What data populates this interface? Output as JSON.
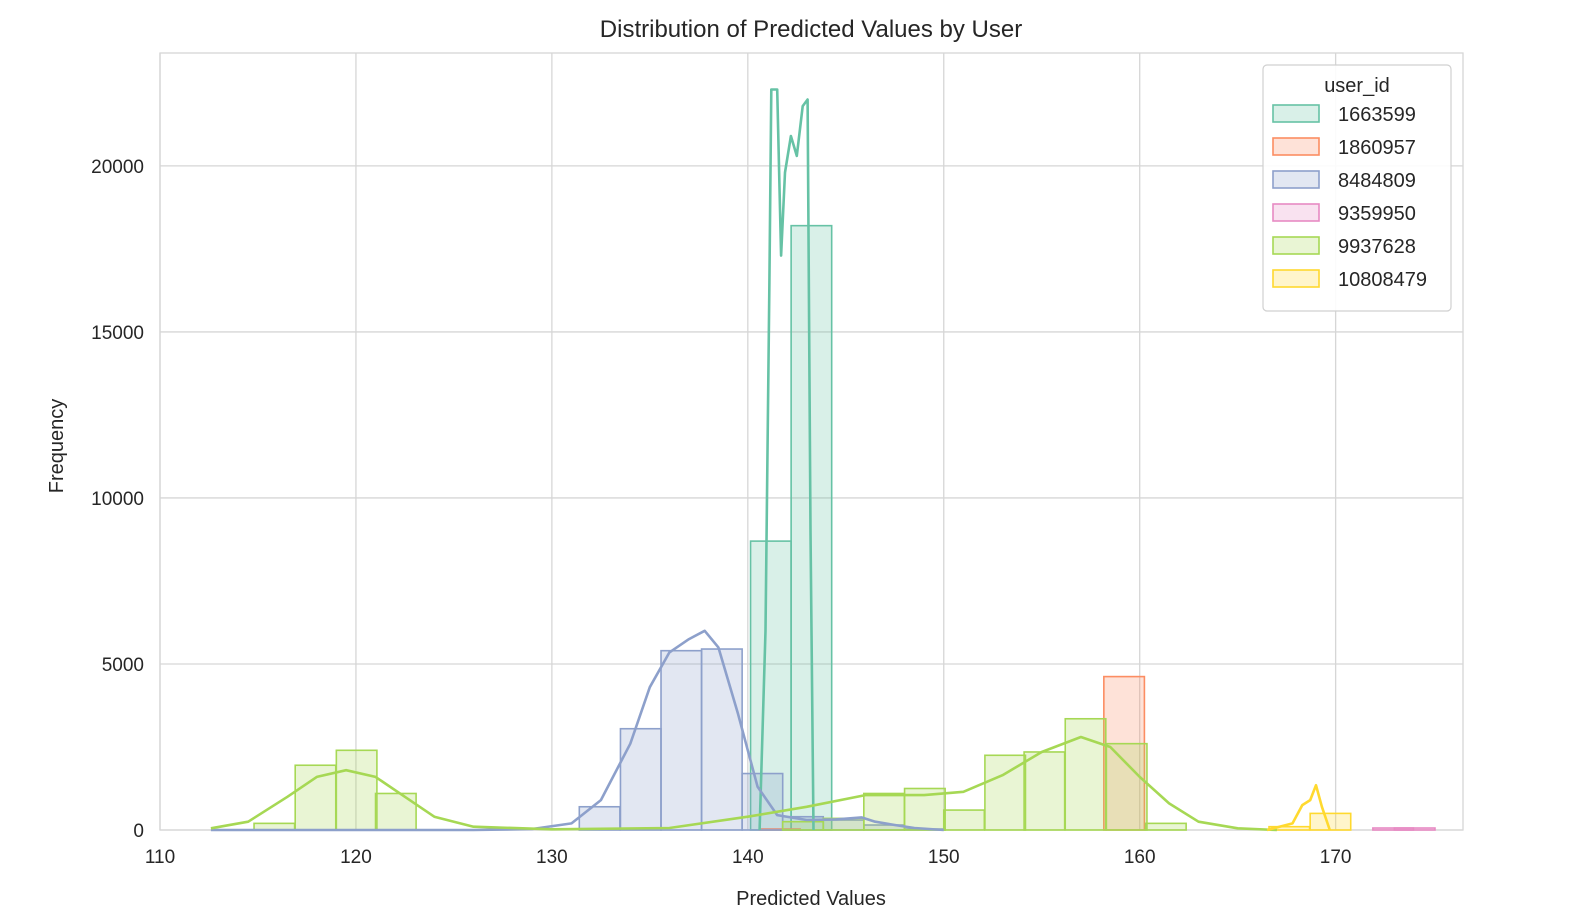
{
  "chart_data": {
    "type": "histogram",
    "title": "Distribution of Predicted Values by User",
    "xlabel": "Predicted Values",
    "ylabel": "Frequency",
    "xlim": [
      110,
      176.5
    ],
    "ylim": [
      0,
      23400
    ],
    "xticks": [
      110,
      120,
      130,
      140,
      150,
      160,
      170
    ],
    "yticks": [
      0,
      5000,
      10000,
      15000,
      20000
    ],
    "grid": true,
    "legend": {
      "title": "user_id",
      "position": "top-right"
    },
    "bin_width": 2.07,
    "series": [
      {
        "name": "1663599",
        "color": "#66c2a5",
        "bins": [
          [
            140.14,
            8700
          ],
          [
            142.21,
            18200
          ]
        ],
        "kde": [
          [
            140.6,
            0
          ],
          [
            140.9,
            6000
          ],
          [
            141.1,
            16500
          ],
          [
            141.2,
            22300
          ],
          [
            141.5,
            22300
          ],
          [
            141.7,
            17300
          ],
          [
            141.9,
            19800
          ],
          [
            142.2,
            20900
          ],
          [
            142.5,
            20300
          ],
          [
            142.8,
            21800
          ],
          [
            143.05,
            22000
          ],
          [
            143.2,
            9000
          ],
          [
            143.35,
            0
          ]
        ]
      },
      {
        "name": "1860957",
        "color": "#fc8d62",
        "bins": [
          [
            140.6,
            30
          ],
          [
            158.17,
            4620
          ]
        ],
        "kde": []
      },
      {
        "name": "8484809",
        "color": "#8da0cb",
        "bins": [
          [
            131.4,
            700
          ],
          [
            133.5,
            3050
          ],
          [
            135.57,
            5400
          ],
          [
            137.64,
            5450
          ],
          [
            139.71,
            1700
          ],
          [
            141.78,
            400
          ],
          [
            143.85,
            300
          ],
          [
            145.92,
            150
          ],
          [
            148.0,
            30
          ]
        ],
        "kde": [
          [
            112.6,
            0
          ],
          [
            126.0,
            0
          ],
          [
            129.0,
            30
          ],
          [
            131.0,
            200
          ],
          [
            132.5,
            900
          ],
          [
            134.0,
            2600
          ],
          [
            135.0,
            4300
          ],
          [
            136.0,
            5350
          ],
          [
            137.0,
            5750
          ],
          [
            137.8,
            6000
          ],
          [
            138.5,
            5500
          ],
          [
            139.5,
            3500
          ],
          [
            140.5,
            1300
          ],
          [
            141.5,
            450
          ],
          [
            143.0,
            300
          ],
          [
            144.5,
            320
          ],
          [
            145.8,
            380
          ],
          [
            146.5,
            250
          ],
          [
            147.5,
            150
          ],
          [
            148.5,
            60
          ],
          [
            150.0,
            0
          ]
        ]
      },
      {
        "name": "9359950",
        "color": "#e78ac3",
        "bins": [
          [
            171.9,
            60
          ],
          [
            173.0,
            60
          ]
        ],
        "kde": []
      },
      {
        "name": "9937628",
        "color": "#a6d854",
        "bins": [
          [
            114.8,
            200
          ],
          [
            116.9,
            1950
          ],
          [
            119.0,
            2400
          ],
          [
            121.0,
            1100
          ],
          [
            141.78,
            250
          ],
          [
            143.85,
            350
          ],
          [
            145.92,
            1100
          ],
          [
            148.0,
            1250
          ],
          [
            150.0,
            600
          ],
          [
            152.1,
            2250
          ],
          [
            154.1,
            2350
          ],
          [
            156.2,
            3350
          ],
          [
            158.3,
            2600
          ],
          [
            160.3,
            200
          ]
        ],
        "kde": [
          [
            112.6,
            50
          ],
          [
            114.5,
            250
          ],
          [
            116.5,
            1000
          ],
          [
            118.0,
            1600
          ],
          [
            119.5,
            1800
          ],
          [
            121.0,
            1600
          ],
          [
            122.5,
            1000
          ],
          [
            124.0,
            400
          ],
          [
            126.0,
            100
          ],
          [
            130.0,
            20
          ],
          [
            136.0,
            60
          ],
          [
            140.0,
            400
          ],
          [
            143.0,
            700
          ],
          [
            146.0,
            1050
          ],
          [
            149.0,
            1050
          ],
          [
            151.0,
            1150
          ],
          [
            153.0,
            1650
          ],
          [
            155.0,
            2350
          ],
          [
            157.0,
            2800
          ],
          [
            158.5,
            2500
          ],
          [
            160.0,
            1600
          ],
          [
            161.5,
            800
          ],
          [
            163.0,
            250
          ],
          [
            165.0,
            50
          ],
          [
            167.0,
            0
          ]
        ]
      },
      {
        "name": "10808479",
        "color": "#ffd92f",
        "bins": [
          [
            166.6,
            100
          ],
          [
            168.7,
            500
          ]
        ],
        "kde": [
          [
            166.5,
            0
          ],
          [
            167.8,
            200
          ],
          [
            168.3,
            750
          ],
          [
            168.7,
            900
          ],
          [
            169.0,
            1350
          ],
          [
            169.3,
            700
          ],
          [
            169.7,
            0
          ]
        ]
      }
    ]
  }
}
